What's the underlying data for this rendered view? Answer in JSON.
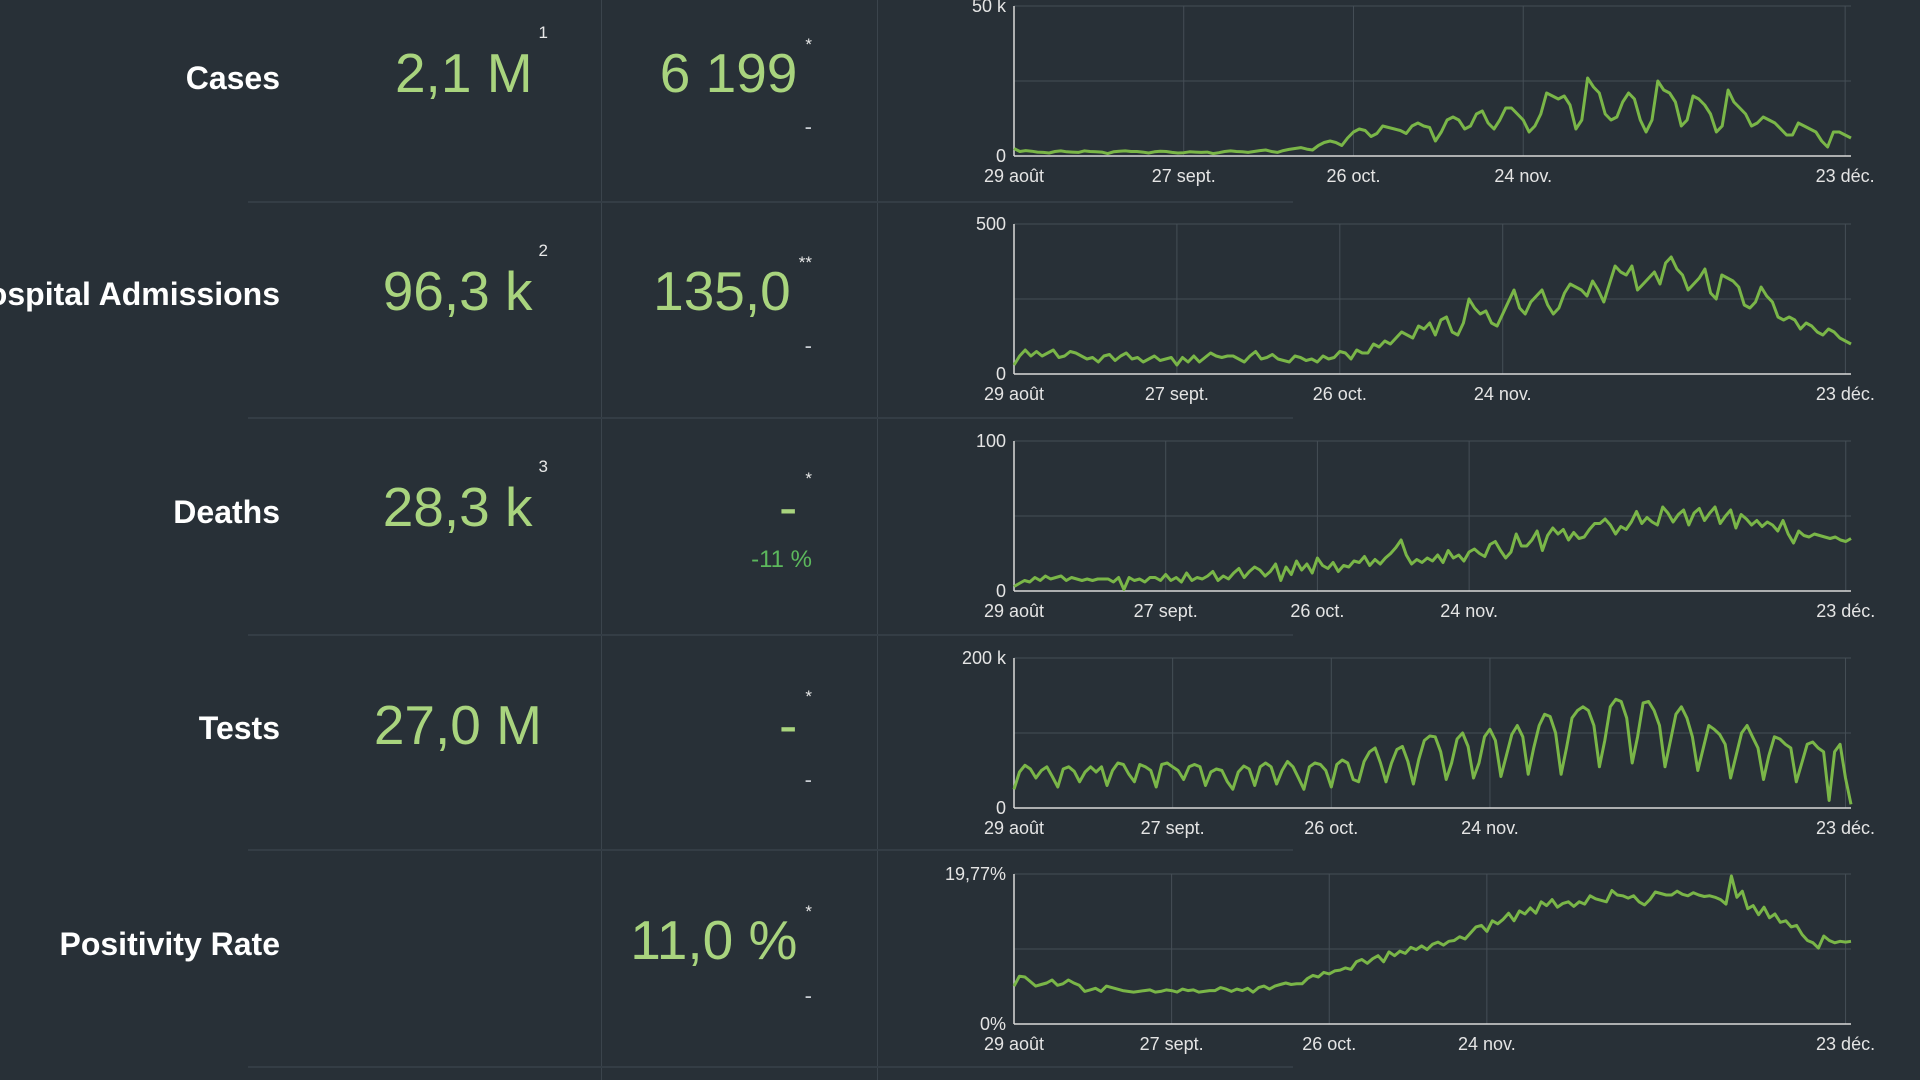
{
  "rows": [
    {
      "label": "Cases",
      "total": "2,1 M",
      "total_note": "1",
      "daily": "6 199",
      "daily_note": "*",
      "change": "-"
    },
    {
      "label": "Hospital Admissions",
      "total": "96,3 k",
      "total_note": "2",
      "daily": "135,0",
      "daily_note": "**",
      "change": "-"
    },
    {
      "label": "Deaths",
      "total": "28,3 k",
      "total_note": "3",
      "daily": "-",
      "daily_note": "*",
      "change": "-11 %"
    },
    {
      "label": "Tests",
      "total": "27,0 M",
      "total_note": "",
      "daily": "-",
      "daily_note": "*",
      "change": "-"
    },
    {
      "label": "Positivity Rate",
      "total": "",
      "total_note": "",
      "daily": "11,0 %",
      "daily_note": "*",
      "change": "-"
    }
  ],
  "colors": {
    "background": "#283037",
    "line": "#7ab648",
    "value_text": "#a9d47e",
    "positive_change": "#5cb85c"
  },
  "chart_data": [
    {
      "type": "line",
      "ylim": [
        0,
        50000
      ],
      "ytick_labels": [
        "0",
        "50 k"
      ],
      "xtick_labels": [
        "29 août",
        "27 sept.",
        "26 oct.",
        "24 nov.",
        "23 déc."
      ],
      "x_start": "29 août",
      "x_end": "24 déc.",
      "grid": true,
      "values": [
        2500,
        1500,
        1800,
        1600,
        1300,
        1200,
        1000,
        1500,
        1700,
        1400,
        1300,
        1200,
        1700,
        1500,
        1400,
        1300,
        800,
        1400,
        1600,
        1700,
        1500,
        1500,
        1300,
        1000,
        1400,
        1600,
        1500,
        1200,
        1000,
        1100,
        1400,
        1300,
        1200,
        1300,
        800,
        1100,
        1500,
        1700,
        1500,
        1400,
        1200,
        1500,
        1800,
        2000,
        1500,
        1200,
        1800,
        2200,
        2500,
        2800,
        2300,
        2000,
        3500,
        4500,
        5000,
        4500,
        3500,
        6000,
        8000,
        9000,
        8500,
        6500,
        7500,
        10000,
        9500,
        9000,
        8500,
        7500,
        10000,
        11000,
        10000,
        9500,
        5000,
        8000,
        12000,
        13000,
        12000,
        9000,
        10000,
        14000,
        15000,
        11000,
        9000,
        12000,
        16000,
        16000,
        14000,
        12000,
        8000,
        10000,
        14000,
        21000,
        20000,
        19000,
        20000,
        17000,
        9000,
        12000,
        26000,
        23000,
        21000,
        14000,
        12000,
        13000,
        18000,
        21000,
        19000,
        12000,
        8000,
        12000,
        25000,
        22000,
        21000,
        18000,
        10000,
        12000,
        20000,
        19000,
        17000,
        14000,
        8000,
        10000,
        22000,
        18000,
        16000,
        14000,
        10000,
        11000,
        13000,
        12000,
        11000,
        9000,
        7000,
        7000,
        11000,
        10000,
        9000,
        8000,
        5000,
        3000,
        8000,
        8000,
        7000,
        6000
      ],
      "series": [
        {
          "color": "#7ab648"
        }
      ]
    },
    {
      "type": "line",
      "ylim": [
        0,
        500
      ],
      "ytick_labels": [
        "0",
        "500"
      ],
      "xtick_labels": [
        "29 août",
        "27 sept.",
        "26 oct.",
        "24 nov.",
        "23 déc."
      ],
      "x_start": "29 août",
      "x_end": "24 déc.",
      "grid": true,
      "values": [
        30,
        60,
        80,
        60,
        75,
        60,
        70,
        80,
        55,
        60,
        75,
        70,
        60,
        50,
        55,
        40,
        60,
        65,
        45,
        60,
        70,
        50,
        55,
        40,
        50,
        60,
        45,
        50,
        55,
        30,
        55,
        40,
        60,
        40,
        55,
        70,
        60,
        55,
        60,
        60,
        50,
        40,
        60,
        75,
        50,
        55,
        65,
        50,
        45,
        40,
        60,
        55,
        45,
        50,
        40,
        60,
        50,
        55,
        75,
        70,
        50,
        80,
        70,
        70,
        100,
        90,
        110,
        100,
        120,
        140,
        130,
        120,
        160,
        150,
        170,
        130,
        180,
        190,
        140,
        130,
        170,
        250,
        220,
        200,
        210,
        170,
        160,
        200,
        240,
        280,
        220,
        200,
        240,
        260,
        280,
        230,
        200,
        220,
        270,
        300,
        290,
        280,
        260,
        310,
        280,
        240,
        300,
        360,
        340,
        330,
        360,
        280,
        300,
        320,
        340,
        300,
        370,
        390,
        350,
        330,
        280,
        300,
        320,
        350,
        270,
        250,
        330,
        320,
        310,
        290,
        230,
        220,
        240,
        290,
        260,
        240,
        190,
        180,
        190,
        180,
        150,
        170,
        160,
        140,
        130,
        150,
        140,
        120,
        110,
        100
      ]
    },
    {
      "type": "line",
      "ylim": [
        0,
        100
      ],
      "ytick_labels": [
        "0",
        "100"
      ],
      "xtick_labels": [
        "29 août",
        "27 sept.",
        "26 oct.",
        "24 nov.",
        "23 déc."
      ],
      "x_start": "29 août",
      "x_end": "24 déc.",
      "grid": true,
      "values": [
        3,
        5,
        7,
        6,
        9,
        7,
        10,
        8,
        9,
        10,
        7,
        9,
        8,
        7,
        8,
        7,
        8,
        8,
        8,
        6,
        9,
        1,
        9,
        7,
        8,
        6,
        9,
        9,
        7,
        11,
        7,
        9,
        6,
        12,
        7,
        9,
        8,
        10,
        13,
        7,
        10,
        8,
        12,
        15,
        9,
        13,
        16,
        14,
        10,
        13,
        18,
        7,
        16,
        11,
        20,
        14,
        18,
        12,
        22,
        17,
        15,
        19,
        13,
        17,
        16,
        20,
        19,
        23,
        17,
        21,
        18,
        22,
        25,
        29,
        34,
        24,
        18,
        21,
        19,
        22,
        20,
        24,
        19,
        27,
        22,
        24,
        20,
        26,
        28,
        25,
        23,
        31,
        33,
        27,
        22,
        26,
        38,
        30,
        30,
        34,
        40,
        27,
        37,
        42,
        38,
        41,
        34,
        39,
        35,
        36,
        41,
        45,
        45,
        48,
        44,
        38,
        43,
        41,
        46,
        53,
        45,
        49,
        46,
        44,
        56,
        52,
        46,
        51,
        54,
        44,
        52,
        55,
        47,
        52,
        56,
        45,
        50,
        54,
        42,
        51,
        48,
        44,
        47,
        43,
        46,
        44,
        40,
        47,
        38,
        32,
        40,
        37,
        36,
        38,
        37,
        36,
        35,
        36,
        34,
        33,
        35
      ]
    },
    {
      "type": "line",
      "ylim": [
        0,
        200000
      ],
      "ytick_labels": [
        "0",
        "200 k"
      ],
      "xtick_labels": [
        "29 août",
        "27 sept.",
        "26 oct.",
        "24 nov.",
        "23 déc."
      ],
      "x_start": "29 août",
      "x_end": "24 déc.",
      "grid": true,
      "values": [
        25000,
        48000,
        57000,
        52000,
        40000,
        50000,
        55000,
        42000,
        28000,
        52000,
        55000,
        49000,
        35000,
        48000,
        55000,
        48000,
        55000,
        30000,
        50000,
        60000,
        58000,
        45000,
        35000,
        58000,
        55000,
        50000,
        28000,
        58000,
        60000,
        55000,
        50000,
        38000,
        55000,
        58000,
        55000,
        30000,
        48000,
        52000,
        50000,
        35000,
        25000,
        48000,
        56000,
        52000,
        30000,
        55000,
        60000,
        55000,
        32000,
        50000,
        62000,
        55000,
        40000,
        25000,
        55000,
        60000,
        58000,
        50000,
        28000,
        58000,
        64000,
        60000,
        38000,
        35000,
        62000,
        75000,
        80000,
        60000,
        35000,
        60000,
        78000,
        82000,
        62000,
        32000,
        65000,
        90000,
        96000,
        95000,
        75000,
        38000,
        60000,
        92000,
        100000,
        82000,
        40000,
        60000,
        95000,
        105000,
        90000,
        42000,
        70000,
        98000,
        110000,
        95000,
        45000,
        80000,
        110000,
        125000,
        122000,
        100000,
        45000,
        80000,
        120000,
        130000,
        135000,
        130000,
        110000,
        55000,
        90000,
        135000,
        145000,
        142000,
        120000,
        60000,
        95000,
        140000,
        142000,
        130000,
        110000,
        55000,
        90000,
        125000,
        135000,
        120000,
        95000,
        50000,
        80000,
        110000,
        105000,
        98000,
        85000,
        40000,
        70000,
        100000,
        110000,
        95000,
        80000,
        38000,
        70000,
        95000,
        92000,
        85000,
        80000,
        35000,
        60000,
        85000,
        88000,
        80000,
        75000,
        10000,
        75000,
        85000,
        40000,
        5000
      ]
    },
    {
      "type": "line",
      "ylim": [
        0,
        19.77
      ],
      "ytick_labels": [
        "0%",
        "19,77%"
      ],
      "xtick_labels": [
        "29 août",
        "27 sept.",
        "26 oct.",
        "24 nov.",
        "23 déc."
      ],
      "x_start": "29 août",
      "x_end": "24 déc.",
      "grid": true,
      "values": [
        5.0,
        6.3,
        6.2,
        5.6,
        5.0,
        5.2,
        5.4,
        5.8,
        5.1,
        5.3,
        5.8,
        5.4,
        5.1,
        4.3,
        4.5,
        4.7,
        4.3,
        5.0,
        4.8,
        4.6,
        4.4,
        4.3,
        4.2,
        4.3,
        4.4,
        4.5,
        4.2,
        4.3,
        4.5,
        4.4,
        4.2,
        4.6,
        4.4,
        4.5,
        4.2,
        4.3,
        4.4,
        4.4,
        4.8,
        4.6,
        4.3,
        4.6,
        4.4,
        4.7,
        4.2,
        4.8,
        5.0,
        4.6,
        5.0,
        5.2,
        5.4,
        5.2,
        5.3,
        5.3,
        6.0,
        6.4,
        6.2,
        6.8,
        6.6,
        7.0,
        7.1,
        7.4,
        7.2,
        8.2,
        8.5,
        8.0,
        8.6,
        9.0,
        8.2,
        9.5,
        9.0,
        9.6,
        9.3,
        10.1,
        9.8,
        10.3,
        9.8,
        10.5,
        10.8,
        10.4,
        10.9,
        11.0,
        11.5,
        11.2,
        12.0,
        12.8,
        13.0,
        12.2,
        13.6,
        13.2,
        13.8,
        14.6,
        13.6,
        14.9,
        14.5,
        15.3,
        14.6,
        16.1,
        15.6,
        16.4,
        15.4,
        15.9,
        16.1,
        15.5,
        16.1,
        15.8,
        16.9,
        16.5,
        16.3,
        16.1,
        17.6,
        17.0,
        16.9,
        16.6,
        16.9,
        16.1,
        15.7,
        16.4,
        17.4,
        17.2,
        17.0,
        17.0,
        17.5,
        17.1,
        16.9,
        17.3,
        17.0,
        16.8,
        16.9,
        16.7,
        16.4,
        15.8,
        19.5,
        16.7,
        17.5,
        15.2,
        15.6,
        14.4,
        15.4,
        14.0,
        14.5,
        13.4,
        13.6,
        12.8,
        13.0,
        11.8,
        11.0,
        10.7,
        10.0,
        11.6,
        11.0,
        10.7,
        10.9,
        10.8,
        10.9
      ]
    }
  ]
}
